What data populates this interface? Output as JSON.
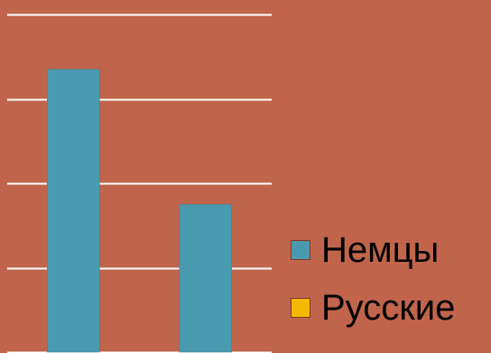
{
  "chart_data": {
    "type": "bar",
    "categories": [
      "",
      ""
    ],
    "series": [
      {
        "name": "Немцы",
        "values": [
          3.35,
          1.75
        ],
        "color": "#4a9aaf"
      },
      {
        "name": "Русские",
        "values": [
          0,
          0
        ],
        "color": "#f3b800"
      }
    ],
    "ylim": [
      0,
      4
    ],
    "grid": true,
    "legend_placement": "bottom-right",
    "gridline_color": "#ffffff",
    "background_color": "#c0654b"
  }
}
